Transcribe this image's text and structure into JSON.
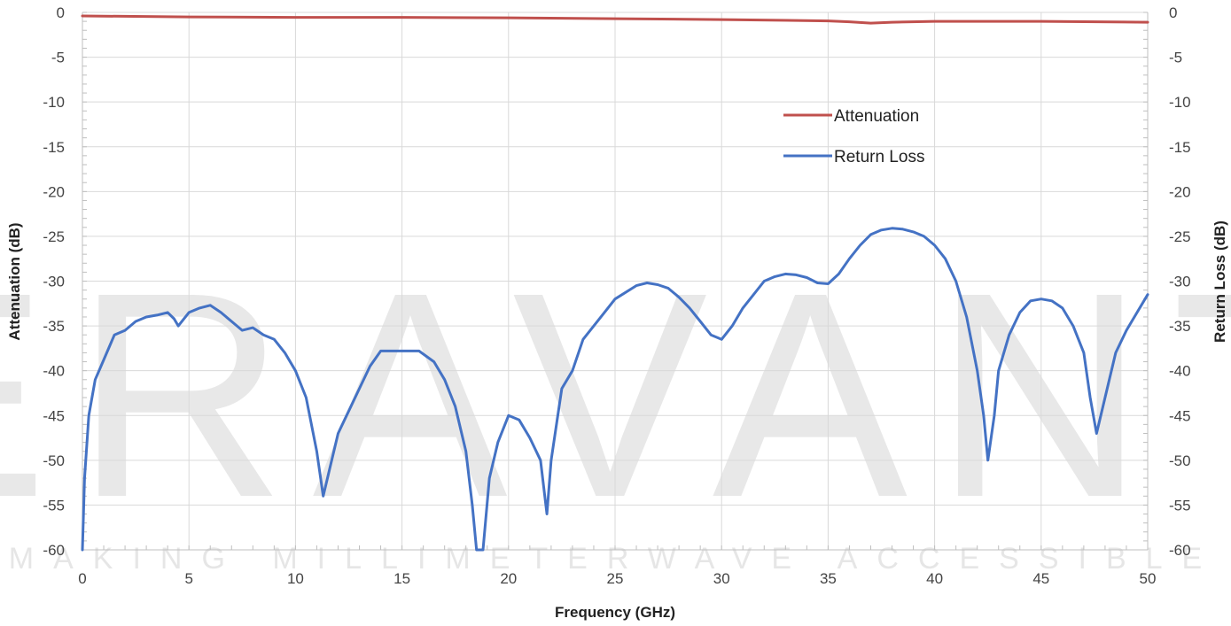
{
  "watermark": {
    "logo": "ERAVANT",
    "tagline": "MAKING MILLIMETERWAVE ACCESSIBLE"
  },
  "chart_data": {
    "type": "line",
    "xlabel": "Frequency (GHz)",
    "ylabel_left": "Attenuation (dB)",
    "ylabel_right": "Return Loss (dB)",
    "xlim": [
      0,
      50
    ],
    "ylim": [
      -60,
      0
    ],
    "xticks": [
      "0",
      "5",
      "10",
      "15",
      "20",
      "25",
      "30",
      "35",
      "40",
      "45",
      "50"
    ],
    "yticks": [
      "0",
      "-5",
      "-10",
      "-15",
      "-20",
      "-25",
      "-30",
      "-35",
      "-40",
      "-45",
      "-50",
      "-55",
      "-60"
    ],
    "grid": true,
    "legend_position": "upper-right-center",
    "series": [
      {
        "name": "Attenuation",
        "color": "#c0504d",
        "axis": "left",
        "points": [
          [
            0,
            -0.4
          ],
          [
            5,
            -0.5
          ],
          [
            10,
            -0.55
          ],
          [
            15,
            -0.55
          ],
          [
            20,
            -0.6
          ],
          [
            25,
            -0.7
          ],
          [
            30,
            -0.8
          ],
          [
            35,
            -0.95
          ],
          [
            36,
            -1.05
          ],
          [
            37,
            -1.2
          ],
          [
            38,
            -1.1
          ],
          [
            40,
            -1.0
          ],
          [
            45,
            -1.0
          ],
          [
            50,
            -1.1
          ]
        ]
      },
      {
        "name": "Return Loss",
        "color": "#4472c4",
        "axis": "right",
        "points": [
          [
            0,
            -60
          ],
          [
            0.1,
            -52
          ],
          [
            0.3,
            -45
          ],
          [
            0.6,
            -41
          ],
          [
            1,
            -38.8
          ],
          [
            1.5,
            -36
          ],
          [
            2,
            -35.5
          ],
          [
            2.5,
            -34.5
          ],
          [
            3,
            -34
          ],
          [
            3.5,
            -33.8
          ],
          [
            4,
            -33.5
          ],
          [
            4.3,
            -34.2
          ],
          [
            4.5,
            -35
          ],
          [
            5,
            -33.5
          ],
          [
            5.5,
            -33
          ],
          [
            6,
            -32.7
          ],
          [
            6.5,
            -33.5
          ],
          [
            7,
            -34.5
          ],
          [
            7.5,
            -35.5
          ],
          [
            8,
            -35.2
          ],
          [
            8.5,
            -36
          ],
          [
            9,
            -36.5
          ],
          [
            9.5,
            -38
          ],
          [
            10,
            -40
          ],
          [
            10.5,
            -43
          ],
          [
            11,
            -49
          ],
          [
            11.3,
            -54
          ],
          [
            11.6,
            -51
          ],
          [
            12,
            -47
          ],
          [
            12.5,
            -44.5
          ],
          [
            13,
            -42
          ],
          [
            13.5,
            -39.5
          ],
          [
            14,
            -37.8
          ],
          [
            15,
            -37.8
          ],
          [
            15.8,
            -37.8
          ],
          [
            16.5,
            -39
          ],
          [
            17,
            -41
          ],
          [
            17.5,
            -44
          ],
          [
            18,
            -49
          ],
          [
            18.3,
            -55
          ],
          [
            18.5,
            -60
          ],
          [
            18.8,
            -60
          ],
          [
            19.1,
            -52
          ],
          [
            19.5,
            -48
          ],
          [
            20,
            -45
          ],
          [
            20.5,
            -45.5
          ],
          [
            21,
            -47.5
          ],
          [
            21.5,
            -50
          ],
          [
            21.8,
            -56
          ],
          [
            22,
            -50
          ],
          [
            22.5,
            -42
          ],
          [
            23,
            -40
          ],
          [
            23.5,
            -36.5
          ],
          [
            24,
            -35
          ],
          [
            24.5,
            -33.5
          ],
          [
            25,
            -32
          ],
          [
            26,
            -30.5
          ],
          [
            26.5,
            -30.2
          ],
          [
            27,
            -30.4
          ],
          [
            27.5,
            -30.8
          ],
          [
            28,
            -31.8
          ],
          [
            28.5,
            -33
          ],
          [
            29,
            -34.5
          ],
          [
            29.5,
            -36
          ],
          [
            30,
            -36.5
          ],
          [
            30.5,
            -35
          ],
          [
            31,
            -33
          ],
          [
            31.5,
            -31.5
          ],
          [
            32,
            -30
          ],
          [
            32.5,
            -29.5
          ],
          [
            33,
            -29.2
          ],
          [
            33.5,
            -29.3
          ],
          [
            34,
            -29.6
          ],
          [
            34.5,
            -30.2
          ],
          [
            35,
            -30.3
          ],
          [
            35.5,
            -29.2
          ],
          [
            36,
            -27.5
          ],
          [
            36.5,
            -26
          ],
          [
            37,
            -24.8
          ],
          [
            37.5,
            -24.3
          ],
          [
            38,
            -24.1
          ],
          [
            38.5,
            -24.2
          ],
          [
            39,
            -24.5
          ],
          [
            39.5,
            -25
          ],
          [
            40,
            -26
          ],
          [
            40.5,
            -27.5
          ],
          [
            41,
            -30
          ],
          [
            41.5,
            -34
          ],
          [
            42,
            -40
          ],
          [
            42.3,
            -45
          ],
          [
            42.5,
            -50
          ],
          [
            42.8,
            -45
          ],
          [
            43,
            -40
          ],
          [
            43.5,
            -36
          ],
          [
            44,
            -33.5
          ],
          [
            44.5,
            -32.2
          ],
          [
            45,
            -32
          ],
          [
            45.5,
            -32.2
          ],
          [
            46,
            -33
          ],
          [
            46.5,
            -35
          ],
          [
            47,
            -38
          ],
          [
            47.3,
            -43
          ],
          [
            47.6,
            -47
          ],
          [
            48,
            -43
          ],
          [
            48.5,
            -38
          ],
          [
            49,
            -35.5
          ],
          [
            49.5,
            -33.5
          ],
          [
            50,
            -31.5
          ]
        ]
      }
    ]
  }
}
